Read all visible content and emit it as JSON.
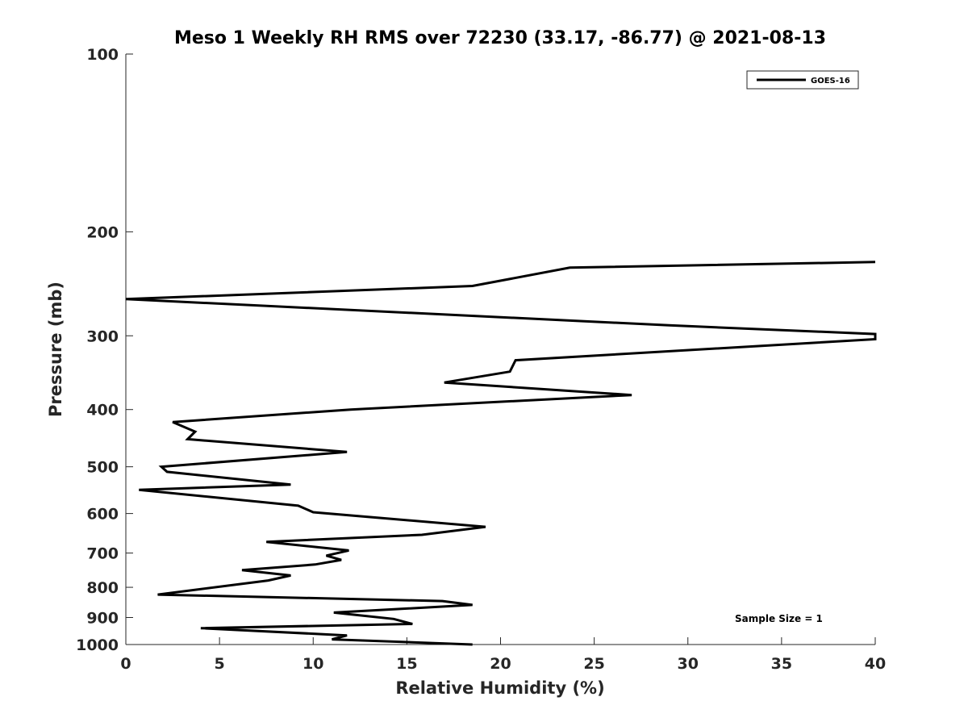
{
  "chart_data": {
    "type": "line",
    "title": "Meso 1 Weekly RH RMS over 72230 (33.17, -86.77) @ 2021-08-13",
    "xlabel": "Relative Humidity (%)",
    "ylabel": "Pressure (mb)",
    "xlim": [
      0,
      40
    ],
    "ylim": [
      100,
      1000
    ],
    "yscale": "log",
    "y_reversed": true,
    "grid": false,
    "xticks": [
      0,
      5,
      10,
      15,
      20,
      25,
      30,
      35,
      40
    ],
    "yticks": [
      100,
      200,
      300,
      400,
      500,
      600,
      700,
      800,
      900,
      1000
    ],
    "legend": {
      "location": "top-right",
      "entries": [
        "GOES-16"
      ]
    },
    "annotation": "Sample Size = 1",
    "series": [
      {
        "name": "GOES-16",
        "color": "#000000",
        "points": [
          [
            18.5,
            1000
          ],
          [
            11.0,
            980
          ],
          [
            11.8,
            965
          ],
          [
            4.0,
            938
          ],
          [
            15.3,
            923
          ],
          [
            14.3,
            905
          ],
          [
            11.1,
            883
          ],
          [
            18.5,
            857
          ],
          [
            16.9,
            844
          ],
          [
            1.7,
            823
          ],
          [
            7.6,
            779
          ],
          [
            8.8,
            764
          ],
          [
            6.2,
            748
          ],
          [
            10.1,
            732
          ],
          [
            11.5,
            719
          ],
          [
            10.7,
            707
          ],
          [
            11.9,
            693
          ],
          [
            7.5,
            670
          ],
          [
            15.8,
            652
          ],
          [
            19.2,
            632
          ],
          [
            10.0,
            597
          ],
          [
            9.2,
            582
          ],
          [
            0.7,
            547
          ],
          [
            8.8,
            536
          ],
          [
            2.2,
            510
          ],
          [
            1.9,
            500
          ],
          [
            11.8,
            472
          ],
          [
            3.3,
            449
          ],
          [
            3.7,
            436
          ],
          [
            2.5,
            420
          ],
          [
            12.0,
            400
          ],
          [
            27.0,
            378
          ],
          [
            17.0,
            360
          ],
          [
            20.5,
            345
          ],
          [
            20.8,
            330
          ],
          [
            40.0,
            304
          ],
          [
            40.0,
            298
          ],
          [
            29.0,
            288
          ],
          [
            0.0,
            260
          ],
          [
            18.5,
            247
          ],
          [
            23.7,
            230
          ],
          [
            40.0,
            225
          ]
        ]
      }
    ]
  }
}
